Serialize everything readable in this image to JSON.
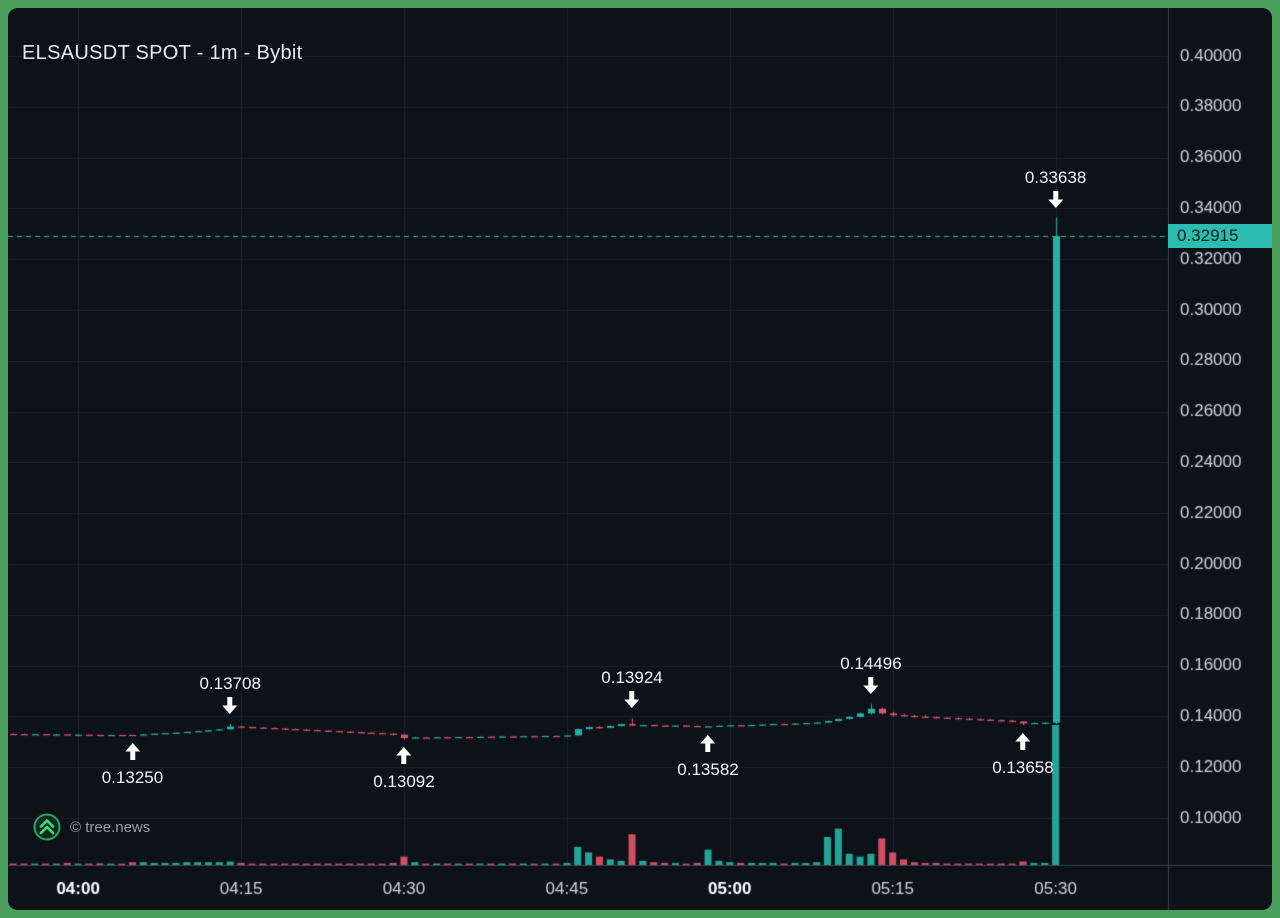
{
  "header": {
    "title": "ELSAUSDT SPOT - 1m - Bybit"
  },
  "watermark": {
    "label": "© tree.news"
  },
  "price_scale": {
    "current_price_label": "0.32915"
  },
  "colors": {
    "frame": "#4a9f5d",
    "background": "#0d1118",
    "grid": "#1a2130",
    "axis_line": "#3a4050",
    "tick_text": "#d1d5dc",
    "tick_text_bold": "#ffffff",
    "up": "#26b2a4",
    "down": "#e2556b",
    "accent": "#2cbdb0",
    "badge_text": "#08201d"
  },
  "chart_data": {
    "type": "candlestick",
    "symbol": "ELSAUSDT",
    "market": "SPOT",
    "interval": "1m",
    "exchange": "Bybit",
    "title": "ELSAUSDT SPOT - 1m - Bybit",
    "current_price": 0.32915,
    "price_axis": {
      "min": 0.1,
      "max": 0.4,
      "tick_step": 0.02
    },
    "y_tick_labels": [
      "0.40000",
      "0.38000",
      "0.36000",
      "0.34000",
      "0.32000",
      "0.30000",
      "0.28000",
      "0.26000",
      "0.24000",
      "0.22000",
      "0.20000",
      "0.18000",
      "0.16000",
      "0.14000",
      "0.12000",
      "0.10000"
    ],
    "x_ticks": [
      {
        "index": 6,
        "label": "04:00",
        "bold": true
      },
      {
        "index": 21,
        "label": "04:15",
        "bold": false
      },
      {
        "index": 36,
        "label": "04:30",
        "bold": false
      },
      {
        "index": 51,
        "label": "04:45",
        "bold": false
      },
      {
        "index": 66,
        "label": "05:00",
        "bold": true
      },
      {
        "index": 81,
        "label": "05:15",
        "bold": false
      },
      {
        "index": 96,
        "label": "05:30",
        "bold": false
      }
    ],
    "annotations": [
      {
        "index": 11,
        "price": 0.1325,
        "label": "0.13250",
        "direction": "up"
      },
      {
        "index": 20,
        "price": 0.13708,
        "label": "0.13708",
        "direction": "down"
      },
      {
        "index": 36,
        "price": 0.13092,
        "label": "0.13092",
        "direction": "up"
      },
      {
        "index": 57,
        "price": 0.13924,
        "label": "0.13924",
        "direction": "down"
      },
      {
        "index": 64,
        "price": 0.13582,
        "label": "0.13582",
        "direction": "up"
      },
      {
        "index": 79,
        "price": 0.14496,
        "label": "0.14496",
        "direction": "down"
      },
      {
        "index": 93,
        "price": 0.13658,
        "label": "0.13658",
        "direction": "up"
      },
      {
        "index": 96,
        "price": 0.33638,
        "label": "0.33638",
        "direction": "down"
      }
    ],
    "ohlcv": [
      [
        0.1331,
        0.1333,
        0.1329,
        0.133,
        1
      ],
      [
        0.133,
        0.1332,
        0.1328,
        0.1329,
        1
      ],
      [
        0.1329,
        0.1331,
        0.1328,
        0.133,
        1
      ],
      [
        0.133,
        0.1331,
        0.1327,
        0.1328,
        1
      ],
      [
        0.1328,
        0.133,
        0.1326,
        0.1329,
        1
      ],
      [
        0.1329,
        0.133,
        0.1326,
        0.1327,
        1.5
      ],
      [
        0.1327,
        0.1329,
        0.1325,
        0.1328,
        1
      ],
      [
        0.1328,
        0.1329,
        0.1326,
        0.1327,
        1
      ],
      [
        0.1327,
        0.1328,
        0.1325,
        0.1326,
        1.2
      ],
      [
        0.1326,
        0.1328,
        0.1325,
        0.1327,
        1
      ],
      [
        0.1327,
        0.1328,
        0.1326,
        0.1326,
        1
      ],
      [
        0.1327,
        0.1328,
        0.1325,
        0.1326,
        2
      ],
      [
        0.1326,
        0.133,
        0.1326,
        0.1329,
        2
      ],
      [
        0.1329,
        0.1333,
        0.1328,
        0.1332,
        1.5
      ],
      [
        0.1332,
        0.1335,
        0.1331,
        0.1334,
        1.5
      ],
      [
        0.1334,
        0.1337,
        0.1333,
        0.1336,
        1.5
      ],
      [
        0.1336,
        0.134,
        0.1335,
        0.1339,
        2
      ],
      [
        0.1339,
        0.1343,
        0.1338,
        0.1342,
        2
      ],
      [
        0.1342,
        0.1346,
        0.1341,
        0.1345,
        2
      ],
      [
        0.1345,
        0.135,
        0.1344,
        0.1349,
        2
      ],
      [
        0.1349,
        0.13708,
        0.1348,
        0.136,
        2.5
      ],
      [
        0.136,
        0.1363,
        0.1356,
        0.1358,
        1.5
      ],
      [
        0.1358,
        0.136,
        0.1354,
        0.1356,
        1
      ],
      [
        0.1356,
        0.1358,
        0.1352,
        0.1354,
        1
      ],
      [
        0.1354,
        0.1356,
        0.135,
        0.1352,
        1
      ],
      [
        0.1352,
        0.1354,
        0.1348,
        0.135,
        1
      ],
      [
        0.135,
        0.1352,
        0.1346,
        0.1348,
        1
      ],
      [
        0.1348,
        0.135,
        0.1344,
        0.1346,
        1
      ],
      [
        0.1346,
        0.1348,
        0.1342,
        0.1344,
        1
      ],
      [
        0.1344,
        0.1346,
        0.134,
        0.1342,
        1
      ],
      [
        0.1342,
        0.1344,
        0.1338,
        0.134,
        1
      ],
      [
        0.134,
        0.1342,
        0.1336,
        0.1338,
        1
      ],
      [
        0.1338,
        0.134,
        0.1334,
        0.1336,
        1
      ],
      [
        0.1336,
        0.1338,
        0.1332,
        0.1334,
        1
      ],
      [
        0.1334,
        0.1336,
        0.133,
        0.1332,
        1
      ],
      [
        0.1332,
        0.1334,
        0.1326,
        0.1328,
        1.5
      ],
      [
        0.1328,
        0.133,
        0.13092,
        0.1315,
        6
      ],
      [
        0.1315,
        0.1319,
        0.1313,
        0.1317,
        2
      ],
      [
        0.1317,
        0.1319,
        0.1315,
        0.1316,
        1
      ],
      [
        0.1316,
        0.1319,
        0.1315,
        0.1318,
        1
      ],
      [
        0.1318,
        0.132,
        0.1316,
        0.1317,
        1
      ],
      [
        0.1317,
        0.132,
        0.1316,
        0.1319,
        1
      ],
      [
        0.1319,
        0.1321,
        0.1317,
        0.1318,
        1
      ],
      [
        0.1318,
        0.1321,
        0.1317,
        0.132,
        1
      ],
      [
        0.132,
        0.1322,
        0.1318,
        0.1319,
        1
      ],
      [
        0.1319,
        0.1322,
        0.1318,
        0.1321,
        1
      ],
      [
        0.1321,
        0.1323,
        0.1319,
        0.132,
        1
      ],
      [
        0.132,
        0.1323,
        0.1319,
        0.1322,
        1
      ],
      [
        0.1322,
        0.1324,
        0.132,
        0.1321,
        1
      ],
      [
        0.1321,
        0.1324,
        0.132,
        0.1323,
        1
      ],
      [
        0.1323,
        0.1325,
        0.1321,
        0.1322,
        1
      ],
      [
        0.1322,
        0.1326,
        0.1321,
        0.1325,
        1.5
      ],
      [
        0.1325,
        0.1352,
        0.1325,
        0.135,
        13
      ],
      [
        0.135,
        0.136,
        0.1348,
        0.1358,
        9
      ],
      [
        0.1358,
        0.1362,
        0.1352,
        0.1355,
        6
      ],
      [
        0.1355,
        0.1364,
        0.1354,
        0.1362,
        4
      ],
      [
        0.1362,
        0.1372,
        0.136,
        0.137,
        3
      ],
      [
        0.137,
        0.13924,
        0.1362,
        0.1364,
        22
      ],
      [
        0.1364,
        0.1368,
        0.136,
        0.1366,
        3
      ],
      [
        0.1366,
        0.1368,
        0.1362,
        0.1364,
        2
      ],
      [
        0.1364,
        0.1366,
        0.136,
        0.1362,
        1.5
      ],
      [
        0.1362,
        0.1366,
        0.136,
        0.1364,
        1.5
      ],
      [
        0.1364,
        0.1366,
        0.136,
        0.1362,
        1
      ],
      [
        0.1362,
        0.1364,
        0.1359,
        0.136,
        1.5
      ],
      [
        0.136,
        0.1362,
        0.13582,
        0.1361,
        11
      ],
      [
        0.1361,
        0.1364,
        0.1359,
        0.1363,
        3
      ],
      [
        0.1363,
        0.1366,
        0.1361,
        0.1365,
        2
      ],
      [
        0.1365,
        0.1367,
        0.1362,
        0.1364,
        1.5
      ],
      [
        0.1364,
        0.1367,
        0.1362,
        0.1366,
        1.5
      ],
      [
        0.1366,
        0.1369,
        0.1364,
        0.1368,
        1.5
      ],
      [
        0.1368,
        0.1371,
        0.1366,
        0.137,
        1.5
      ],
      [
        0.137,
        0.1372,
        0.1367,
        0.1369,
        1
      ],
      [
        0.1369,
        0.1373,
        0.1367,
        0.1372,
        1.5
      ],
      [
        0.1372,
        0.1375,
        0.137,
        0.1374,
        1.5
      ],
      [
        0.1374,
        0.1377,
        0.1372,
        0.1376,
        2
      ],
      [
        0.1376,
        0.1384,
        0.1374,
        0.1382,
        20
      ],
      [
        0.1382,
        0.1392,
        0.138,
        0.139,
        26
      ],
      [
        0.139,
        0.14,
        0.1388,
        0.1398,
        8
      ],
      [
        0.1398,
        0.1415,
        0.1396,
        0.1412,
        6
      ],
      [
        0.1412,
        0.14496,
        0.1408,
        0.143,
        8
      ],
      [
        0.143,
        0.1435,
        0.1408,
        0.1412,
        19
      ],
      [
        0.1412,
        0.1418,
        0.14,
        0.1405,
        9
      ],
      [
        0.1405,
        0.141,
        0.1398,
        0.1402,
        4
      ],
      [
        0.1402,
        0.1406,
        0.1396,
        0.1399,
        2
      ],
      [
        0.1399,
        0.1403,
        0.1394,
        0.1397,
        1.5
      ],
      [
        0.1397,
        0.14,
        0.1392,
        0.1395,
        1.5
      ],
      [
        0.1395,
        0.1398,
        0.139,
        0.1393,
        1
      ],
      [
        0.1393,
        0.1396,
        0.1388,
        0.1391,
        1
      ],
      [
        0.1391,
        0.1394,
        0.1386,
        0.1389,
        1
      ],
      [
        0.1389,
        0.1392,
        0.1384,
        0.1387,
        1
      ],
      [
        0.1387,
        0.139,
        0.1382,
        0.1385,
        1
      ],
      [
        0.1385,
        0.1388,
        0.138,
        0.1383,
        1
      ],
      [
        0.1383,
        0.1386,
        0.1377,
        0.138,
        1
      ],
      [
        0.138,
        0.1382,
        0.13658,
        0.1372,
        2.5
      ],
      [
        0.1372,
        0.1376,
        0.1369,
        0.1374,
        1.5
      ],
      [
        0.1374,
        0.1377,
        0.1371,
        0.1375,
        1.5
      ],
      [
        0.1375,
        0.33638,
        0.137,
        0.32915,
        100
      ]
    ]
  }
}
